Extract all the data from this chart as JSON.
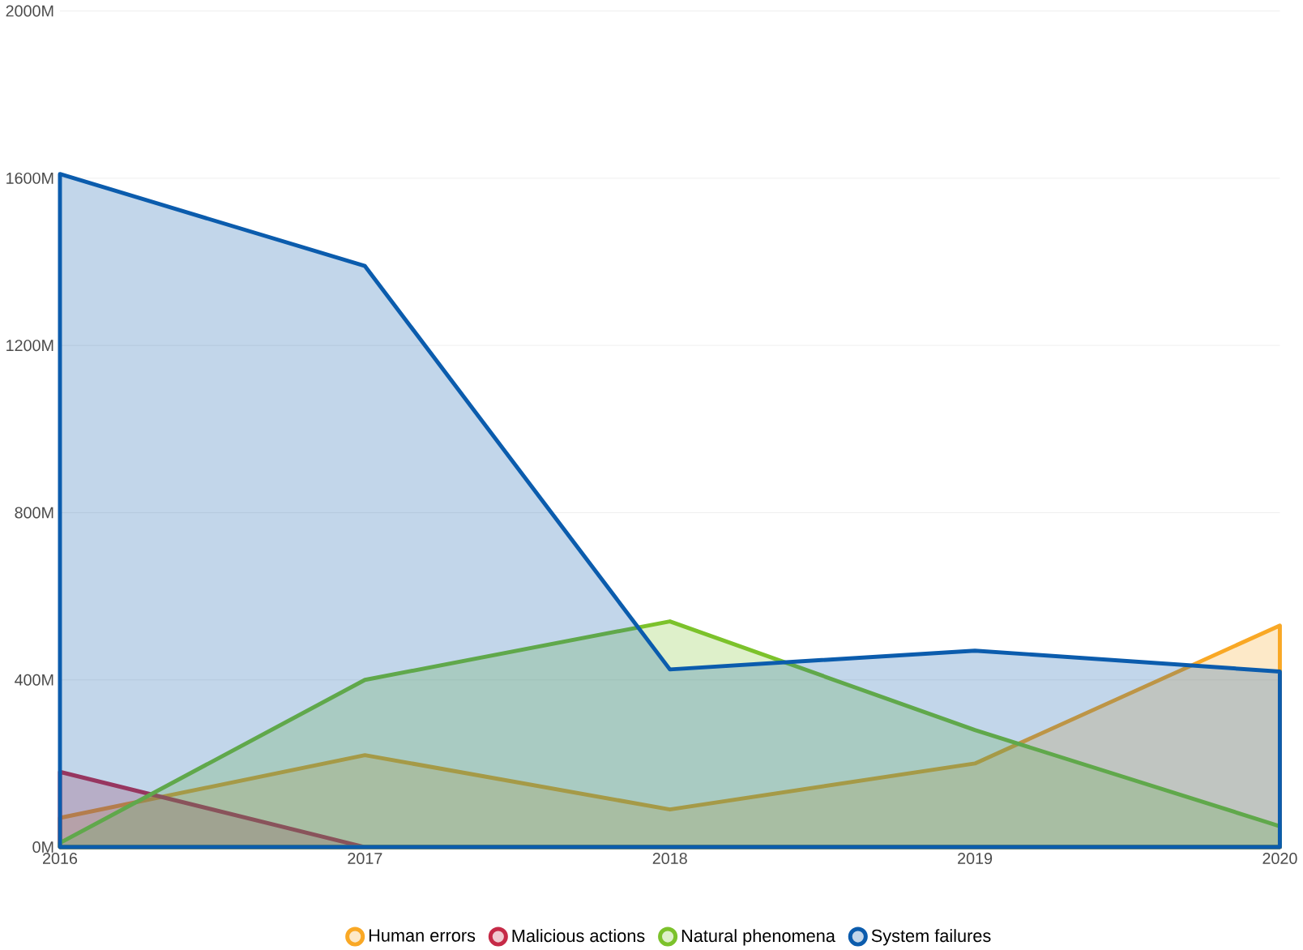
{
  "chart_data": {
    "type": "area",
    "categories": [
      "2016",
      "2017",
      "2018",
      "2019",
      "2020"
    ],
    "series": [
      {
        "name": "Human errors",
        "color": "#f9a825",
        "values": [
          70,
          220,
          90,
          200,
          530
        ]
      },
      {
        "name": "Malicious actions",
        "color": "#c62a47",
        "values": [
          180,
          0,
          0,
          0,
          0
        ]
      },
      {
        "name": "Natural phenomena",
        "color": "#7cc22b",
        "values": [
          10,
          400,
          540,
          280,
          50
        ]
      },
      {
        "name": "System failures",
        "color": "#0b5cad",
        "values": [
          1610,
          1390,
          425,
          470,
          420
        ]
      }
    ],
    "ylim": [
      0,
      2000
    ],
    "yticks": [
      {
        "value": 0,
        "label": "0M"
      },
      {
        "value": 400,
        "label": "400M"
      },
      {
        "value": 800,
        "label": "800M"
      },
      {
        "value": 1200,
        "label": "1200M"
      },
      {
        "value": 1600,
        "label": "1600M"
      },
      {
        "value": 2000,
        "label": "2000M"
      }
    ],
    "grid": "y",
    "legend": "bottom",
    "marker": "none",
    "line_style": "solid"
  }
}
